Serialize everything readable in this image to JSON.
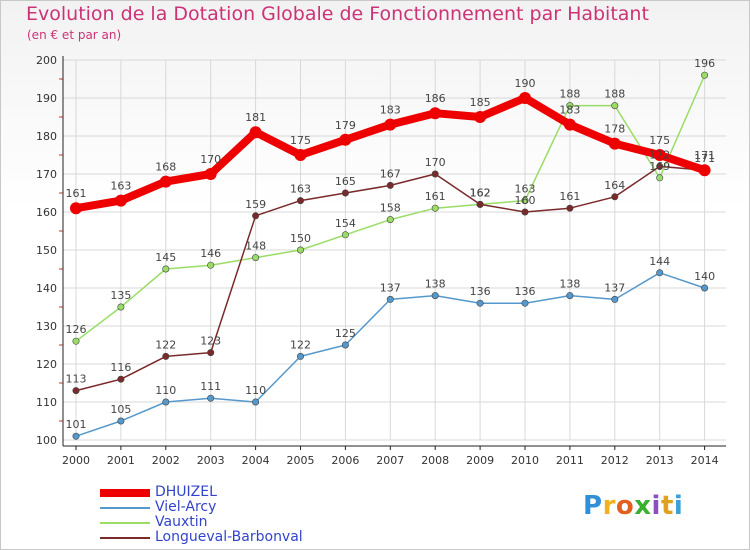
{
  "header": {
    "title": "Evolution de la Dotation Globale de Fonctionnement par Habitant",
    "subtitle": "(en € et par an)"
  },
  "brand": {
    "text": "Proxiti",
    "letter_colors": [
      "#2f8fd8",
      "#f0b020",
      "#e06020",
      "#3ab030",
      "#8c4fc0",
      "#e0a020",
      "#3aa0d8"
    ]
  },
  "chart_data": {
    "type": "line",
    "title": "Evolution de la Dotation Globale de Fonctionnement par Habitant",
    "subtitle": "(en € et par an)",
    "xlabel": "",
    "ylabel": "",
    "categories": [
      "2000",
      "2001",
      "2002",
      "2003",
      "2004",
      "2005",
      "2006",
      "2007",
      "2008",
      "2009",
      "2010",
      "2011",
      "2012",
      "2013",
      "2014"
    ],
    "ylim": [
      100,
      200
    ],
    "yticks": [
      "100",
      "110",
      "120",
      "130",
      "140",
      "150",
      "160",
      "170",
      "180",
      "190",
      "200"
    ],
    "grid": true,
    "legend_position": "bottom-left",
    "series": [
      {
        "name": "DHUIZEL",
        "color": "#ee0000",
        "emphasis": true,
        "values": [
          161,
          163,
          168,
          170,
          181,
          175,
          179,
          183,
          186,
          185,
          190,
          183,
          178,
          175,
          171
        ],
        "labels": [
          "161",
          "163",
          "168",
          "170",
          "181",
          "175",
          "179",
          "183",
          "186",
          "185",
          "190",
          "183",
          "178",
          "175",
          "171"
        ]
      },
      {
        "name": "Viel-Arcy",
        "color": "#5599cc",
        "values": [
          101,
          105,
          110,
          111,
          110,
          122,
          125,
          137,
          138,
          136,
          136,
          138,
          137,
          144,
          140
        ],
        "labels": [
          "101",
          "105",
          "110",
          "111",
          "110",
          "122",
          "125",
          "137",
          "138",
          "136",
          "136",
          "138",
          "137",
          "144",
          "140"
        ]
      },
      {
        "name": "Vauxtin",
        "color": "#99dd66",
        "values": [
          126,
          135,
          145,
          146,
          148,
          150,
          154,
          158,
          161,
          162,
          163,
          188,
          188,
          169,
          196
        ],
        "labels": [
          "126",
          "135",
          "145",
          "146",
          "148",
          "150",
          "154",
          "158",
          "161",
          "162",
          "163",
          "188",
          "188",
          "169",
          "196"
        ]
      },
      {
        "name": "Longueval-Barbonval",
        "color": "#7a2a2a",
        "values": [
          113,
          116,
          122,
          123,
          159,
          163,
          165,
          167,
          170,
          162,
          160,
          161,
          164,
          172,
          171
        ],
        "labels": [
          "113",
          "116",
          "122",
          "123",
          "159",
          "163",
          "165",
          "167",
          "170",
          "162",
          "160",
          "161",
          "164",
          "172",
          "171"
        ]
      }
    ]
  }
}
